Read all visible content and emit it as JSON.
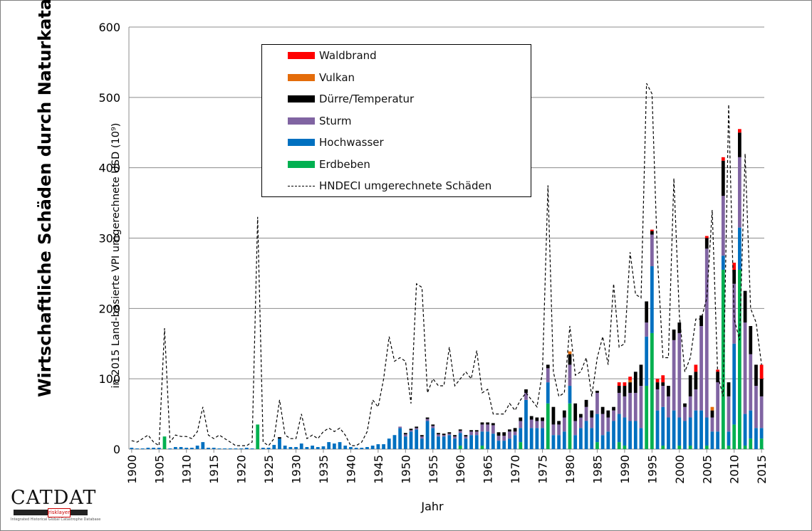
{
  "logo": {
    "text": "CATDAT",
    "badge": "risklayer",
    "subtitle": "Integrated Historical Global Catastrophe Database"
  },
  "y_title": "Wirtschaftliche Schäden durch Naturkatastrophen",
  "y_subtitle": "in 2015 Land-basierte VPI umgerechnete USD (10⁹)",
  "chart_data": {
    "type": "bar",
    "stacked": true,
    "xlabel": "Jahr",
    "ylim": [
      0,
      600
    ],
    "yticks": [
      0,
      100,
      200,
      300,
      400,
      500,
      600
    ],
    "grid": true,
    "legend_position": "top-center",
    "x_tick_labels": [
      "1900",
      "1905",
      "1910",
      "1915",
      "1920",
      "1925",
      "1930",
      "1935",
      "1940",
      "1945",
      "1950",
      "1955",
      "1960",
      "1965",
      "1970",
      "1975",
      "1980",
      "1985",
      "1990",
      "1995",
      "2000",
      "2005",
      "2010",
      "2015"
    ],
    "categories": [
      1900,
      1901,
      1902,
      1903,
      1904,
      1905,
      1906,
      1907,
      1908,
      1909,
      1910,
      1911,
      1912,
      1913,
      1914,
      1915,
      1916,
      1917,
      1918,
      1919,
      1920,
      1921,
      1922,
      1923,
      1924,
      1925,
      1926,
      1927,
      1928,
      1929,
      1930,
      1931,
      1932,
      1933,
      1934,
      1935,
      1936,
      1937,
      1938,
      1939,
      1940,
      1941,
      1942,
      1943,
      1944,
      1945,
      1946,
      1947,
      1948,
      1949,
      1950,
      1951,
      1952,
      1953,
      1954,
      1955,
      1956,
      1957,
      1958,
      1959,
      1960,
      1961,
      1962,
      1963,
      1964,
      1965,
      1966,
      1967,
      1968,
      1969,
      1970,
      1971,
      1972,
      1973,
      1974,
      1975,
      1976,
      1977,
      1978,
      1979,
      1980,
      1981,
      1982,
      1983,
      1984,
      1985,
      1986,
      1987,
      1988,
      1989,
      1990,
      1991,
      1992,
      1993,
      1994,
      1995,
      1996,
      1997,
      1998,
      1999,
      2000,
      2001,
      2002,
      2003,
      2004,
      2005,
      2006,
      2007,
      2008,
      2009,
      2010,
      2011,
      2012,
      2013,
      2014,
      2015
    ],
    "series": [
      {
        "name": "Erdbeben",
        "color": "#00b050",
        "values": [
          0,
          0,
          0,
          0,
          0,
          0,
          18,
          0,
          0,
          0,
          0,
          0,
          0,
          0,
          0,
          0,
          0,
          0,
          0,
          0,
          0,
          0,
          0,
          35,
          0,
          0,
          0,
          0,
          0,
          0,
          0,
          0,
          0,
          0,
          0,
          0,
          0,
          0,
          0,
          0,
          0,
          0,
          0,
          0,
          0,
          0,
          0,
          0,
          0,
          0,
          0,
          0,
          0,
          0,
          0,
          0,
          0,
          0,
          0,
          0,
          5,
          0,
          0,
          0,
          5,
          0,
          0,
          0,
          0,
          0,
          0,
          10,
          0,
          0,
          0,
          0,
          65,
          0,
          0,
          0,
          65,
          0,
          0,
          0,
          0,
          10,
          0,
          0,
          0,
          10,
          5,
          0,
          0,
          0,
          90,
          165,
          0,
          5,
          0,
          0,
          5,
          0,
          5,
          0,
          0,
          5,
          0,
          0,
          255,
          5,
          35,
          255,
          5,
          15,
          0,
          15
        ]
      },
      {
        "name": "Hochwasser",
        "color": "#0070c0",
        "values": [
          2,
          1,
          1,
          2,
          2,
          2,
          0,
          1,
          3,
          3,
          2,
          2,
          5,
          10,
          2,
          2,
          1,
          1,
          1,
          1,
          1,
          2,
          1,
          0,
          2,
          2,
          6,
          15,
          5,
          3,
          3,
          8,
          3,
          5,
          3,
          4,
          10,
          8,
          10,
          5,
          3,
          2,
          2,
          3,
          5,
          7,
          7,
          15,
          20,
          30,
          18,
          25,
          28,
          15,
          40,
          30,
          18,
          18,
          20,
          15,
          18,
          15,
          20,
          20,
          20,
          25,
          22,
          12,
          12,
          15,
          20,
          20,
          70,
          30,
          30,
          30,
          30,
          20,
          20,
          25,
          25,
          20,
          30,
          40,
          30,
          40,
          20,
          25,
          40,
          40,
          40,
          40,
          40,
          30,
          70,
          95,
          55,
          55,
          45,
          55,
          40,
          40,
          40,
          55,
          55,
          40,
          25,
          25,
          20,
          20,
          115,
          60,
          45,
          40,
          30,
          15
        ]
      },
      {
        "name": "Sturm",
        "color": "#8064a2",
        "values": [
          0,
          0,
          0,
          0,
          0,
          0,
          0,
          0,
          0,
          0,
          0,
          0,
          0,
          0,
          0,
          0,
          0,
          0,
          0,
          0,
          0,
          0,
          0,
          0,
          0,
          0,
          0,
          0,
          0,
          0,
          0,
          0,
          0,
          0,
          0,
          0,
          0,
          0,
          0,
          0,
          0,
          0,
          0,
          0,
          0,
          0,
          0,
          0,
          0,
          2,
          3,
          2,
          2,
          3,
          3,
          3,
          3,
          2,
          2,
          3,
          3,
          3,
          5,
          5,
          10,
          10,
          12,
          7,
          7,
          10,
          5,
          10,
          10,
          12,
          10,
          10,
          20,
          15,
          15,
          20,
          30,
          20,
          15,
          20,
          15,
          30,
          30,
          20,
          15,
          30,
          30,
          40,
          40,
          60,
          20,
          45,
          30,
          30,
          30,
          100,
          120,
          20,
          30,
          30,
          120,
          240,
          20,
          70,
          85,
          50,
          85,
          100,
          130,
          80,
          60,
          45
        ]
      },
      {
        "name": "Dürre/Temperatur",
        "color": "#000000",
        "values": [
          0,
          0,
          0,
          0,
          0,
          0,
          0,
          0,
          0,
          0,
          0,
          0,
          0,
          0,
          0,
          0,
          0,
          0,
          0,
          0,
          0,
          0,
          0,
          0,
          0,
          0,
          0,
          2,
          0,
          0,
          0,
          0,
          0,
          0,
          0,
          0,
          0,
          0,
          0,
          0,
          0,
          0,
          0,
          0,
          0,
          0,
          0,
          0,
          0,
          0,
          2,
          2,
          2,
          2,
          2,
          2,
          2,
          2,
          2,
          2,
          2,
          2,
          2,
          2,
          3,
          3,
          3,
          5,
          5,
          3,
          5,
          5,
          5,
          5,
          5,
          5,
          5,
          25,
          5,
          10,
          15,
          25,
          5,
          10,
          10,
          3,
          10,
          10,
          5,
          10,
          15,
          15,
          30,
          30,
          30,
          5,
          10,
          5,
          15,
          15,
          15,
          5,
          30,
          25,
          15,
          15,
          10,
          15,
          50,
          20,
          20,
          35,
          45,
          40,
          30,
          25
        ]
      },
      {
        "name": "Vulkan",
        "color": "#e46c0a",
        "values": [
          0,
          0,
          0,
          0,
          0,
          0,
          0,
          0,
          0,
          0,
          0,
          0,
          0,
          0,
          0,
          0,
          0,
          0,
          0,
          0,
          0,
          0,
          0,
          0,
          0,
          0,
          0,
          0,
          0,
          0,
          0,
          0,
          0,
          0,
          0,
          0,
          0,
          0,
          0,
          0,
          0,
          0,
          0,
          0,
          0,
          0,
          0,
          0,
          0,
          0,
          0,
          0,
          0,
          0,
          0,
          0,
          0,
          0,
          0,
          0,
          0,
          0,
          0,
          0,
          0,
          0,
          0,
          0,
          0,
          0,
          0,
          0,
          0,
          0,
          0,
          0,
          0,
          0,
          0,
          0,
          4,
          0,
          0,
          0,
          0,
          0,
          0,
          0,
          0,
          0,
          0,
          3,
          0,
          0,
          0,
          0,
          0,
          0,
          0,
          0,
          0,
          0,
          0,
          0,
          0,
          0,
          5,
          0,
          0,
          0,
          0,
          0,
          0,
          0,
          0,
          0
        ]
      },
      {
        "name": "Waldbrand",
        "color": "#ff0000",
        "values": [
          0,
          0,
          0,
          0,
          0,
          0,
          0,
          0,
          0,
          0,
          0,
          0,
          0,
          0,
          0,
          0,
          0,
          0,
          0,
          0,
          0,
          0,
          0,
          0,
          0,
          0,
          0,
          0,
          0,
          0,
          0,
          0,
          0,
          0,
          0,
          0,
          0,
          0,
          0,
          0,
          0,
          0,
          0,
          0,
          0,
          0,
          0,
          0,
          0,
          0,
          0,
          0,
          0,
          0,
          0,
          0,
          0,
          0,
          0,
          0,
          0,
          0,
          0,
          0,
          0,
          0,
          0,
          0,
          0,
          0,
          0,
          0,
          0,
          0,
          0,
          0,
          0,
          0,
          0,
          0,
          0,
          0,
          0,
          0,
          0,
          0,
          0,
          0,
          0,
          5,
          5,
          5,
          0,
          0,
          0,
          2,
          5,
          10,
          0,
          0,
          0,
          0,
          0,
          10,
          0,
          3,
          0,
          3,
          5,
          0,
          10,
          5,
          0,
          0,
          0,
          20
        ]
      }
    ],
    "line": {
      "name": "HNDECI umgerechnete Schäden",
      "style": "dashed",
      "color": "#000000",
      "values": [
        12,
        10,
        15,
        20,
        10,
        5,
        172,
        10,
        20,
        18,
        18,
        15,
        25,
        60,
        20,
        15,
        20,
        15,
        10,
        5,
        5,
        5,
        10,
        330,
        10,
        5,
        15,
        70,
        20,
        15,
        15,
        50,
        15,
        20,
        15,
        25,
        30,
        25,
        30,
        20,
        5,
        5,
        10,
        25,
        70,
        60,
        100,
        160,
        125,
        130,
        125,
        65,
        235,
        230,
        80,
        100,
        90,
        90,
        145,
        90,
        100,
        110,
        100,
        140,
        80,
        85,
        50,
        50,
        50,
        65,
        55,
        70,
        80,
        70,
        60,
        110,
        375,
        110,
        75,
        80,
        175,
        105,
        110,
        130,
        75,
        130,
        160,
        120,
        235,
        145,
        150,
        280,
        220,
        215,
        520,
        505,
        270,
        130,
        130,
        385,
        190,
        110,
        130,
        185,
        185,
        215,
        340,
        105,
        75,
        490,
        185,
        155,
        420,
        200,
        180,
        120
      ]
    }
  }
}
